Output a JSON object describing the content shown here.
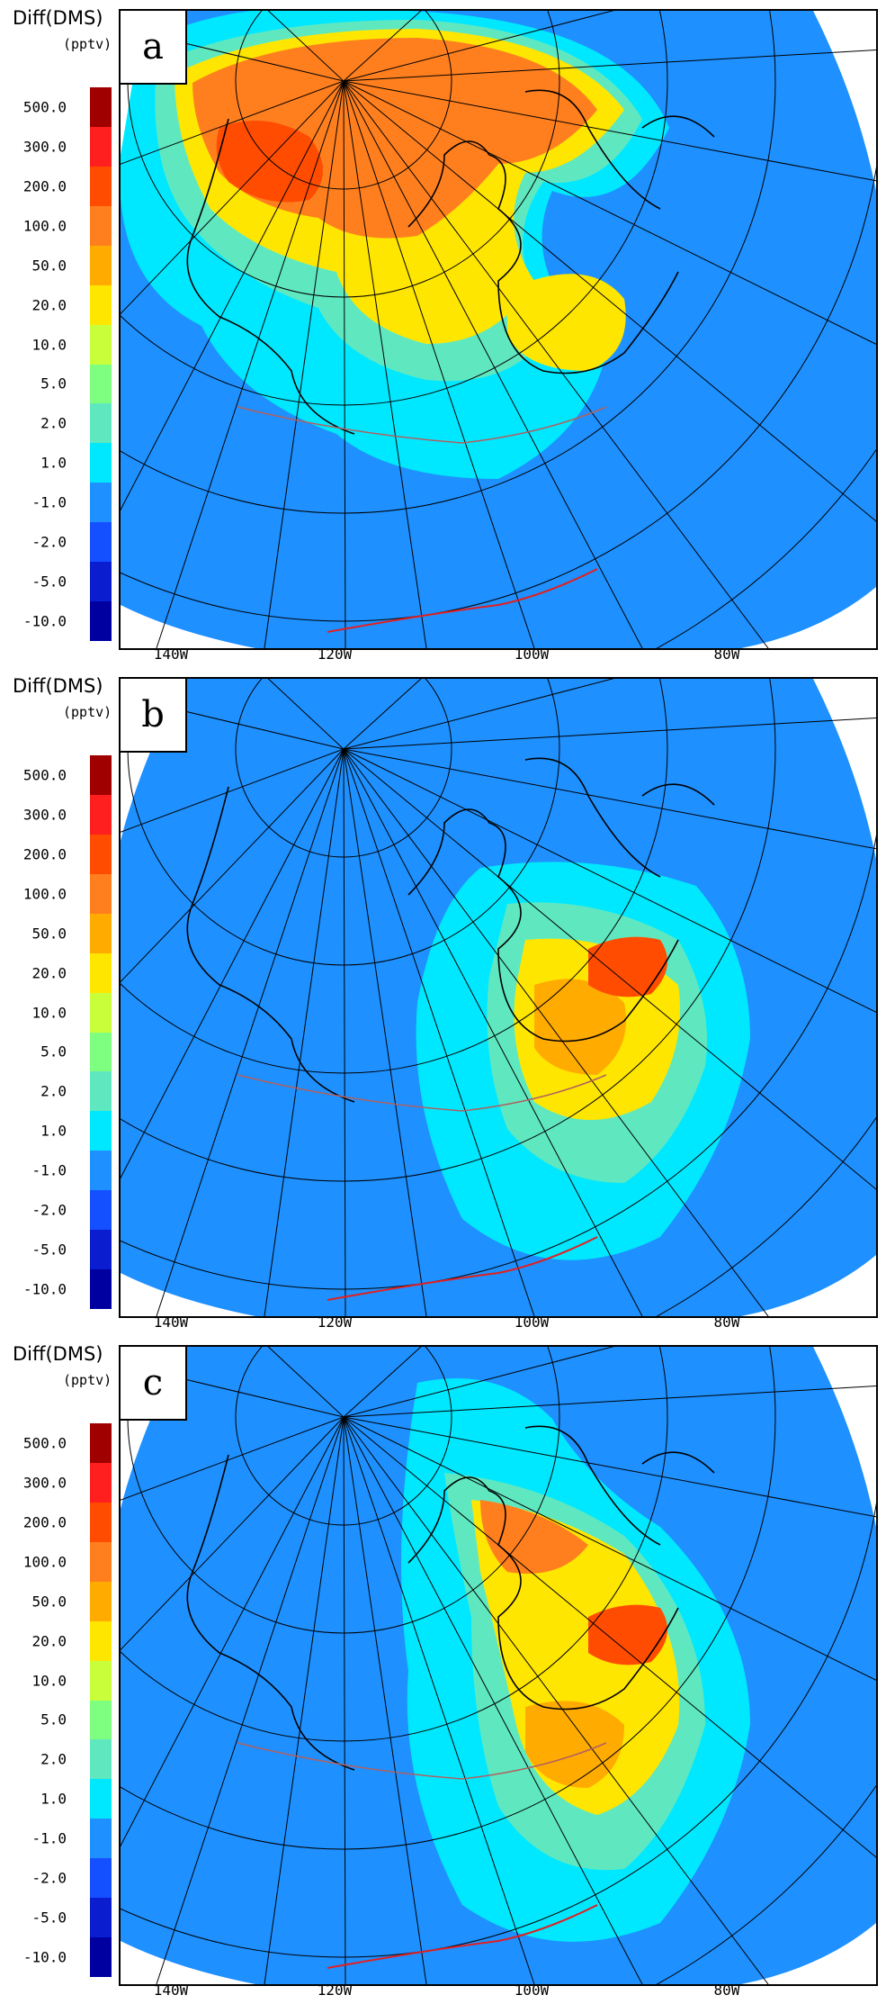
{
  "legend": {
    "title": "Diff(DMS)",
    "unit": "(pptv)",
    "labels": [
      "500.0",
      "300.0",
      "200.0",
      "100.0",
      "50.0",
      "20.0",
      "10.0",
      "5.0",
      "2.0",
      "1.0",
      "-1.0",
      "-2.0",
      "-5.0",
      "-10.0"
    ],
    "colors": [
      "#a00000",
      "#ff1f1f",
      "#ff4c00",
      "#ff7f1f",
      "#ffab00",
      "#ffe600",
      "#c8ff3a",
      "#7fff7f",
      "#5fe8c0",
      "#00e8ff",
      "#1e90ff",
      "#1450ff",
      "#0a1ed0",
      "#0000a0"
    ]
  },
  "panels": [
    {
      "letter": "a",
      "lon_labels": [
        "140W",
        "120W",
        "100W",
        "80W"
      ]
    },
    {
      "letter": "b",
      "lon_labels": [
        "140W",
        "120W",
        "100W",
        "80W"
      ]
    },
    {
      "letter": "c",
      "lon_labels": [
        "140W",
        "120W",
        "100W",
        "80W"
      ]
    }
  ],
  "colors": {
    "background_field": "#1e90ff",
    "coastline": "#000000",
    "lakes": "#2020d0",
    "boundaries": "#b06060",
    "border_us": "#e02020"
  }
}
